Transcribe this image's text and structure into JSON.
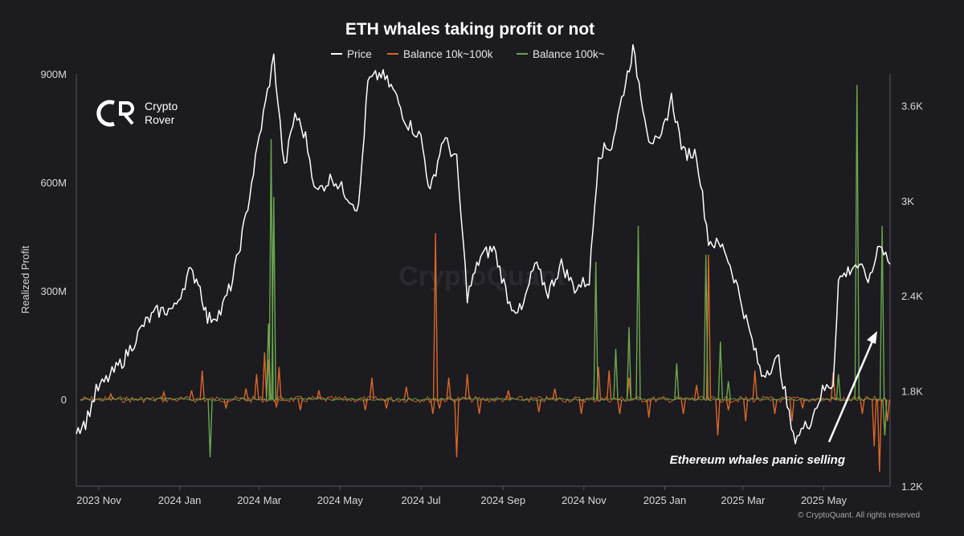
{
  "chart_data": {
    "type": "line",
    "title": "ETH whales taking profit or not",
    "legend": [
      {
        "name": "Price",
        "color": "#ffffff"
      },
      {
        "name": "Balance 10k~100k",
        "color": "#d9662a"
      },
      {
        "name": "Balance 100k~",
        "color": "#6aa84f"
      }
    ],
    "legend_placement": "top-center",
    "grid": false,
    "ylabel_left": "Realized Profit",
    "y_left_ticks": [
      "900M",
      "600M",
      "300M",
      "0"
    ],
    "y_left_tick_values": [
      900,
      600,
      300,
      0
    ],
    "y_left_unit": "M",
    "y_left_range": [
      -240,
      900
    ],
    "y_right_ticks": [
      "3.6K",
      "3K",
      "2.4K",
      "1.8K",
      "1.2K"
    ],
    "y_right_tick_values": [
      3600,
      3000,
      2400,
      1800,
      1200
    ],
    "y_right_range": [
      1200,
      3800
    ],
    "x_ticks": [
      "2023 Nov",
      "2024 Jan",
      "2024 Mar",
      "2024 May",
      "2024 Jul",
      "2024 Sep",
      "2024 Nov",
      "2025 Jan",
      "2025 Mar",
      "2025 May"
    ],
    "x_range": [
      "2023-10-15",
      "2025-06-20"
    ],
    "annotation": "Ethereum whales panic selling",
    "watermark": "CryptoQuant",
    "footer": "© CryptoQuant. All rights reserved",
    "logo": {
      "line1": "Crypto",
      "line2": "Rover"
    },
    "series": [
      {
        "name": "Price",
        "axis": "right",
        "color": "#ffffff",
        "points": [
          [
            "2023-10-15",
            1560
          ],
          [
            "2023-10-22",
            1600
          ],
          [
            "2023-10-30",
            1800
          ],
          [
            "2023-11-08",
            1880
          ],
          [
            "2023-11-20",
            2000
          ],
          [
            "2023-12-05",
            2220
          ],
          [
            "2023-12-15",
            2300
          ],
          [
            "2023-12-28",
            2320
          ],
          [
            "2024-01-08",
            2550
          ],
          [
            "2024-01-15",
            2500
          ],
          [
            "2024-01-22",
            2250
          ],
          [
            "2024-02-01",
            2300
          ],
          [
            "2024-02-10",
            2500
          ],
          [
            "2024-02-20",
            2900
          ],
          [
            "2024-03-01",
            3400
          ],
          [
            "2024-03-12",
            3900
          ],
          [
            "2024-03-20",
            3200
          ],
          [
            "2024-03-28",
            3550
          ],
          [
            "2024-04-05",
            3400
          ],
          [
            "2024-04-13",
            3050
          ],
          [
            "2024-04-25",
            3150
          ],
          [
            "2024-05-05",
            3050
          ],
          [
            "2024-05-15",
            2950
          ],
          [
            "2024-05-22",
            3750
          ],
          [
            "2024-06-01",
            3800
          ],
          [
            "2024-06-10",
            3700
          ],
          [
            "2024-06-20",
            3500
          ],
          [
            "2024-07-01",
            3400
          ],
          [
            "2024-07-08",
            3050
          ],
          [
            "2024-07-18",
            3400
          ],
          [
            "2024-07-28",
            3250
          ],
          [
            "2024-08-05",
            2400
          ],
          [
            "2024-08-15",
            2650
          ],
          [
            "2024-08-25",
            2700
          ],
          [
            "2024-09-06",
            2350
          ],
          [
            "2024-09-15",
            2300
          ],
          [
            "2024-09-25",
            2600
          ],
          [
            "2024-10-05",
            2420
          ],
          [
            "2024-10-15",
            2600
          ],
          [
            "2024-10-25",
            2450
          ],
          [
            "2024-11-05",
            2500
          ],
          [
            "2024-11-12",
            3300
          ],
          [
            "2024-11-22",
            3350
          ],
          [
            "2024-12-01",
            3700
          ],
          [
            "2024-12-08",
            3950
          ],
          [
            "2024-12-20",
            3400
          ],
          [
            "2024-12-28",
            3350
          ],
          [
            "2025-01-06",
            3650
          ],
          [
            "2025-01-15",
            3300
          ],
          [
            "2025-01-25",
            3300
          ],
          [
            "2025-02-03",
            2750
          ],
          [
            "2025-02-15",
            2700
          ],
          [
            "2025-02-25",
            2450
          ],
          [
            "2025-03-05",
            2200
          ],
          [
            "2025-03-15",
            1900
          ],
          [
            "2025-03-28",
            2000
          ],
          [
            "2025-04-08",
            1500
          ],
          [
            "2025-04-20",
            1600
          ],
          [
            "2025-04-30",
            1800
          ],
          [
            "2025-05-08",
            1850
          ],
          [
            "2025-05-12",
            2500
          ],
          [
            "2025-05-25",
            2600
          ],
          [
            "2025-06-05",
            2500
          ],
          [
            "2025-06-12",
            2750
          ],
          [
            "2025-06-20",
            2600
          ]
        ]
      },
      {
        "name": "Balance 10k~100k",
        "axis": "left",
        "color": "#d9662a",
        "baseline": 0,
        "spikes": [
          [
            "2023-11-10",
            15
          ],
          [
            "2023-12-20",
            20
          ],
          [
            "2024-01-10",
            25
          ],
          [
            "2024-01-18",
            80
          ],
          [
            "2024-02-05",
            -25
          ],
          [
            "2024-02-20",
            30
          ],
          [
            "2024-02-28",
            70
          ],
          [
            "2024-03-05",
            130
          ],
          [
            "2024-03-08",
            110
          ],
          [
            "2024-03-14",
            -20
          ],
          [
            "2024-03-16",
            90
          ],
          [
            "2024-04-01",
            -30
          ],
          [
            "2024-04-15",
            25
          ],
          [
            "2024-05-20",
            -30
          ],
          [
            "2024-05-25",
            60
          ],
          [
            "2024-06-05",
            -25
          ],
          [
            "2024-06-20",
            35
          ],
          [
            "2024-07-10",
            -40
          ],
          [
            "2024-07-12",
            460
          ],
          [
            "2024-07-15",
            -25
          ],
          [
            "2024-07-22",
            60
          ],
          [
            "2024-07-28",
            -160
          ],
          [
            "2024-08-05",
            70
          ],
          [
            "2024-08-14",
            -40
          ],
          [
            "2024-09-05",
            25
          ],
          [
            "2024-09-28",
            -35
          ],
          [
            "2024-10-10",
            30
          ],
          [
            "2024-10-30",
            -40
          ],
          [
            "2024-11-12",
            90
          ],
          [
            "2024-11-20",
            80
          ],
          [
            "2024-11-28",
            -40
          ],
          [
            "2024-12-05",
            60
          ],
          [
            "2024-12-20",
            -50
          ],
          [
            "2025-01-15",
            -40
          ],
          [
            "2025-01-25",
            40
          ],
          [
            "2025-02-03",
            400
          ],
          [
            "2025-02-10",
            -100
          ],
          [
            "2025-02-18",
            -30
          ],
          [
            "2025-03-03",
            -60
          ],
          [
            "2025-03-10",
            80
          ],
          [
            "2025-03-25",
            -40
          ],
          [
            "2025-04-07",
            -60
          ],
          [
            "2025-04-15",
            -25
          ],
          [
            "2025-05-08",
            75
          ],
          [
            "2025-05-30",
            -40
          ],
          [
            "2025-06-08",
            -130
          ],
          [
            "2025-06-12",
            -200
          ],
          [
            "2025-06-18",
            -60
          ]
        ]
      },
      {
        "name": "Balance 100k~",
        "axis": "left",
        "color": "#6aa84f",
        "baseline": 0,
        "spikes": [
          [
            "2024-01-24",
            -160
          ],
          [
            "2024-03-10",
            720
          ],
          [
            "2024-03-12",
            560
          ],
          [
            "2024-03-08",
            210
          ],
          [
            "2024-11-10",
            380
          ],
          [
            "2024-11-25",
            140
          ],
          [
            "2024-12-05",
            200
          ],
          [
            "2024-12-12",
            480
          ],
          [
            "2025-01-10",
            100
          ],
          [
            "2025-02-01",
            400
          ],
          [
            "2025-02-12",
            160
          ],
          [
            "2025-02-18",
            50
          ],
          [
            "2025-05-12",
            70
          ],
          [
            "2025-05-26",
            870
          ],
          [
            "2025-06-14",
            480
          ],
          [
            "2025-06-16",
            -100
          ]
        ]
      }
    ]
  }
}
